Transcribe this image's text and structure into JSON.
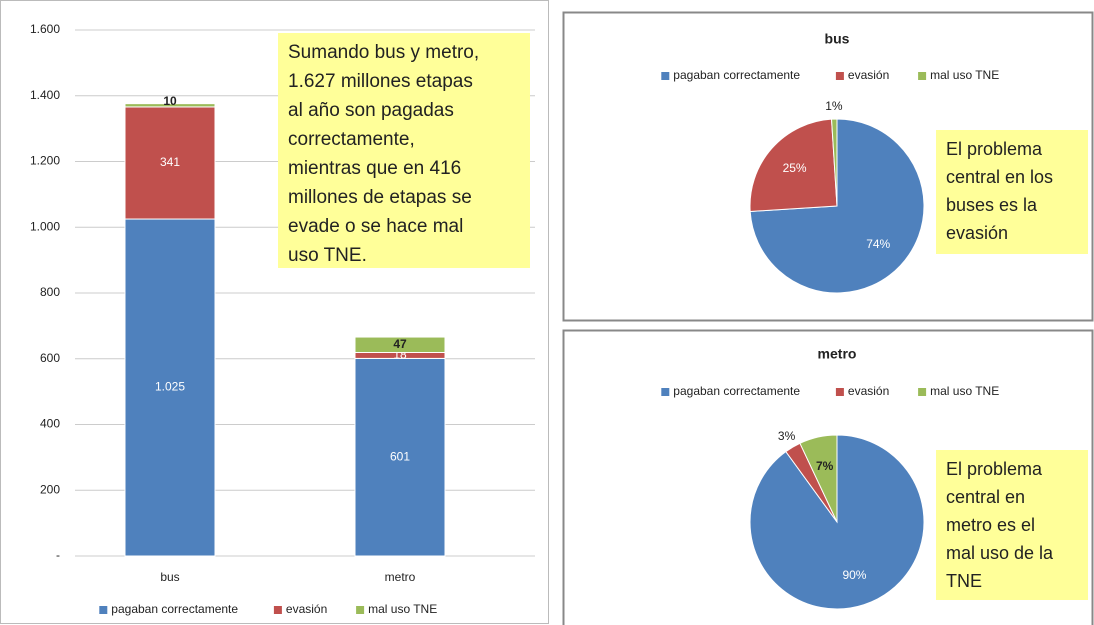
{
  "chart_data": [
    {
      "type": "bar",
      "stacked": true,
      "categories": [
        "bus",
        "metro"
      ],
      "series": [
        {
          "name": "pagaban correctamente",
          "color": "#4f81bd",
          "values": [
            1025,
            601
          ],
          "value_labels": [
            "1.025",
            "601"
          ]
        },
        {
          "name": "evasión",
          "color": "#c0504d",
          "values": [
            341,
            18
          ]
        },
        {
          "name": "mal uso TNE",
          "color": "#9bbb59",
          "values": [
            10,
            47
          ]
        }
      ],
      "ylim": [
        0,
        1600
      ],
      "yticks": [
        {
          "value": 0,
          "label": "-"
        },
        200,
        400,
        600,
        800,
        {
          "value": 1000,
          "label": "1.000"
        },
        {
          "value": 1200,
          "label": "1.200"
        },
        {
          "value": 1400,
          "label": "1.400"
        },
        {
          "value": 1600,
          "label": "1.600"
        }
      ],
      "grid": true,
      "legend": "bottom",
      "annotation": [
        "Sumando bus y metro,",
        "1.627 millones etapas",
        "al año son pagadas",
        "correctamente,",
        "mientras que en 416",
        "millones de etapas se",
        "evade o se hace mal",
        "uso TNE."
      ]
    },
    {
      "type": "pie",
      "title": "bus",
      "categories": [
        "pagaban correctamente",
        "evasión",
        "mal uso TNE"
      ],
      "colors": [
        "#4f81bd",
        "#c0504d",
        "#9bbb59"
      ],
      "values": [
        74,
        25,
        1
      ],
      "value_labels": [
        "74%",
        "25%",
        "1%"
      ],
      "legend": "top",
      "annotation": [
        "El problema",
        "central en los",
        "buses es la",
        "evasión"
      ]
    },
    {
      "type": "pie",
      "title": "metro",
      "categories": [
        "pagaban correctamente",
        "evasión",
        "mal uso TNE"
      ],
      "colors": [
        "#4f81bd",
        "#c0504d",
        "#9bbb59"
      ],
      "values": [
        90,
        3,
        7
      ],
      "value_labels": [
        "90%",
        "3%",
        "7%"
      ],
      "legend": "top",
      "annotation": [
        "El problema",
        "central en",
        "metro es el",
        "mal uso de la",
        "TNE"
      ]
    }
  ]
}
